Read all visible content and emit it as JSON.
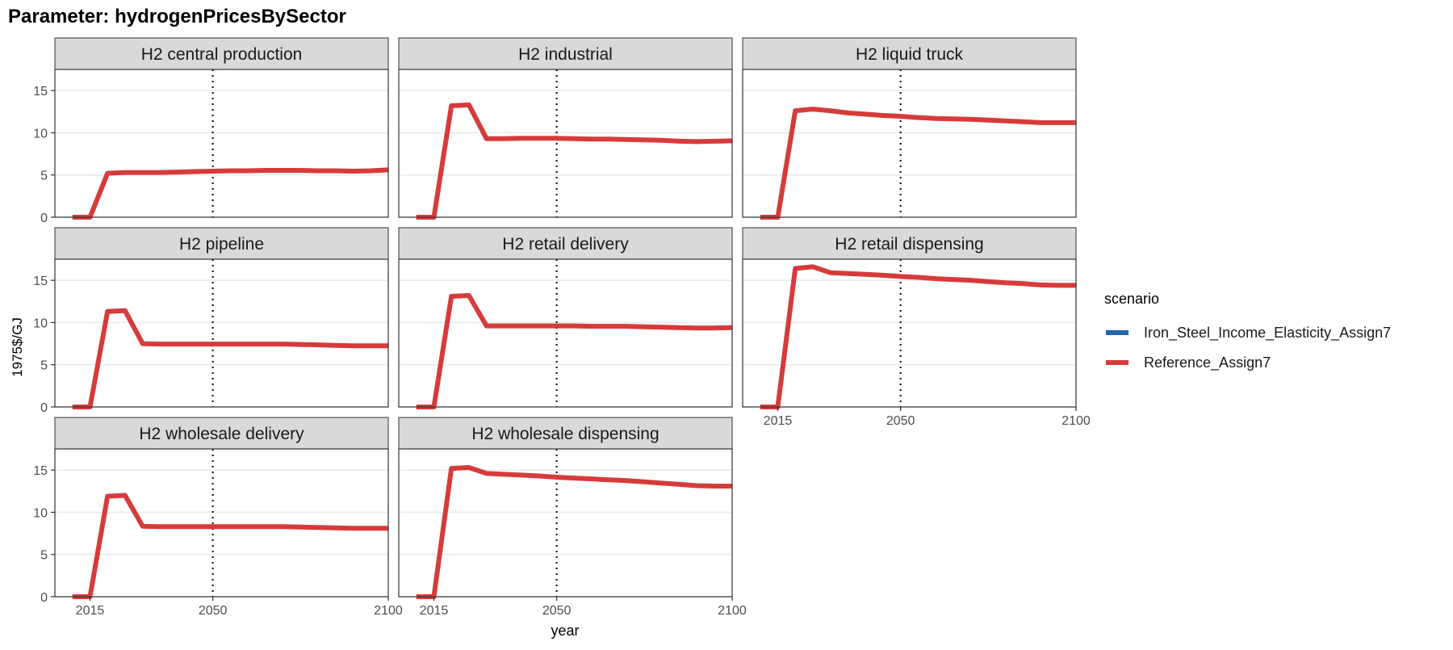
{
  "page_title": "Parameter: hydrogenPricesBySector",
  "chart_data": {
    "type": "line",
    "facet": true,
    "title": "Parameter: hydrogenPricesBySector",
    "xlabel": "year",
    "ylabel": "1975$/GJ",
    "xlim": [
      2005,
      2100
    ],
    "ylim": [
      0,
      17.5
    ],
    "x_ticks": [
      2015,
      2050,
      2100
    ],
    "y_ticks": [
      0,
      5,
      10,
      15
    ],
    "reference_line_x": 2050,
    "grid": true,
    "legend_placement": "right",
    "legend_title": "scenario",
    "series_meta": [
      {
        "name": "Iron_Steel_Income_Elasticity_Assign7",
        "color": "#2166ac"
      },
      {
        "name": "Reference_Assign7",
        "color": "#d63b3b"
      }
    ],
    "x": [
      2010,
      2015,
      2020,
      2025,
      2030,
      2035,
      2040,
      2045,
      2050,
      2055,
      2060,
      2065,
      2070,
      2075,
      2080,
      2085,
      2090,
      2095,
      2100
    ],
    "panels": [
      {
        "title": "H2 central production",
        "series": [
          {
            "name": "Reference_Assign7",
            "values": [
              0,
              0,
              5.2,
              5.3,
              5.3,
              5.3,
              5.35,
              5.4,
              5.45,
              5.5,
              5.5,
              5.55,
              5.55,
              5.55,
              5.5,
              5.5,
              5.45,
              5.5,
              5.6
            ]
          }
        ]
      },
      {
        "title": "H2 industrial",
        "series": [
          {
            "name": "Reference_Assign7",
            "values": [
              0,
              0,
              13.2,
              13.3,
              9.3,
              9.3,
              9.35,
              9.35,
              9.35,
              9.3,
              9.25,
              9.25,
              9.2,
              9.15,
              9.1,
              9.0,
              8.95,
              9.0,
              9.05
            ]
          }
        ]
      },
      {
        "title": "H2 liquid truck",
        "series": [
          {
            "name": "Reference_Assign7",
            "values": [
              0,
              0,
              12.6,
              12.8,
              12.6,
              12.35,
              12.2,
              12.05,
              11.95,
              11.8,
              11.7,
              11.65,
              11.6,
              11.5,
              11.4,
              11.3,
              11.2,
              11.2,
              11.2
            ]
          }
        ]
      },
      {
        "title": "H2 pipeline",
        "series": [
          {
            "name": "Reference_Assign7",
            "values": [
              0,
              0,
              11.3,
              11.4,
              7.5,
              7.45,
              7.45,
              7.45,
              7.45,
              7.45,
              7.45,
              7.45,
              7.45,
              7.4,
              7.35,
              7.3,
              7.25,
              7.25,
              7.25
            ]
          }
        ]
      },
      {
        "title": "H2 retail delivery",
        "series": [
          {
            "name": "Reference_Assign7",
            "values": [
              0,
              0,
              13.1,
              13.2,
              9.6,
              9.6,
              9.6,
              9.6,
              9.6,
              9.6,
              9.55,
              9.55,
              9.55,
              9.5,
              9.45,
              9.4,
              9.35,
              9.35,
              9.4
            ]
          }
        ]
      },
      {
        "title": "H2 retail dispensing",
        "series": [
          {
            "name": "Reference_Assign7",
            "values": [
              0,
              0,
              16.4,
              16.6,
              15.9,
              15.8,
              15.7,
              15.6,
              15.45,
              15.35,
              15.2,
              15.1,
              15.0,
              14.85,
              14.7,
              14.6,
              14.45,
              14.4,
              14.4
            ]
          }
        ]
      },
      {
        "title": "H2 wholesale delivery",
        "series": [
          {
            "name": "Reference_Assign7",
            "values": [
              0,
              0,
              11.9,
              12.0,
              8.35,
              8.3,
              8.3,
              8.3,
              8.3,
              8.3,
              8.3,
              8.3,
              8.3,
              8.25,
              8.2,
              8.15,
              8.1,
              8.1,
              8.1
            ]
          }
        ]
      },
      {
        "title": "H2 wholesale dispensing",
        "series": [
          {
            "name": "Reference_Assign7",
            "values": [
              0,
              0,
              15.2,
              15.3,
              14.6,
              14.5,
              14.4,
              14.3,
              14.15,
              14.05,
              13.95,
              13.85,
              13.75,
              13.6,
              13.45,
              13.3,
              13.15,
              13.1,
              13.1
            ]
          }
        ]
      }
    ]
  }
}
